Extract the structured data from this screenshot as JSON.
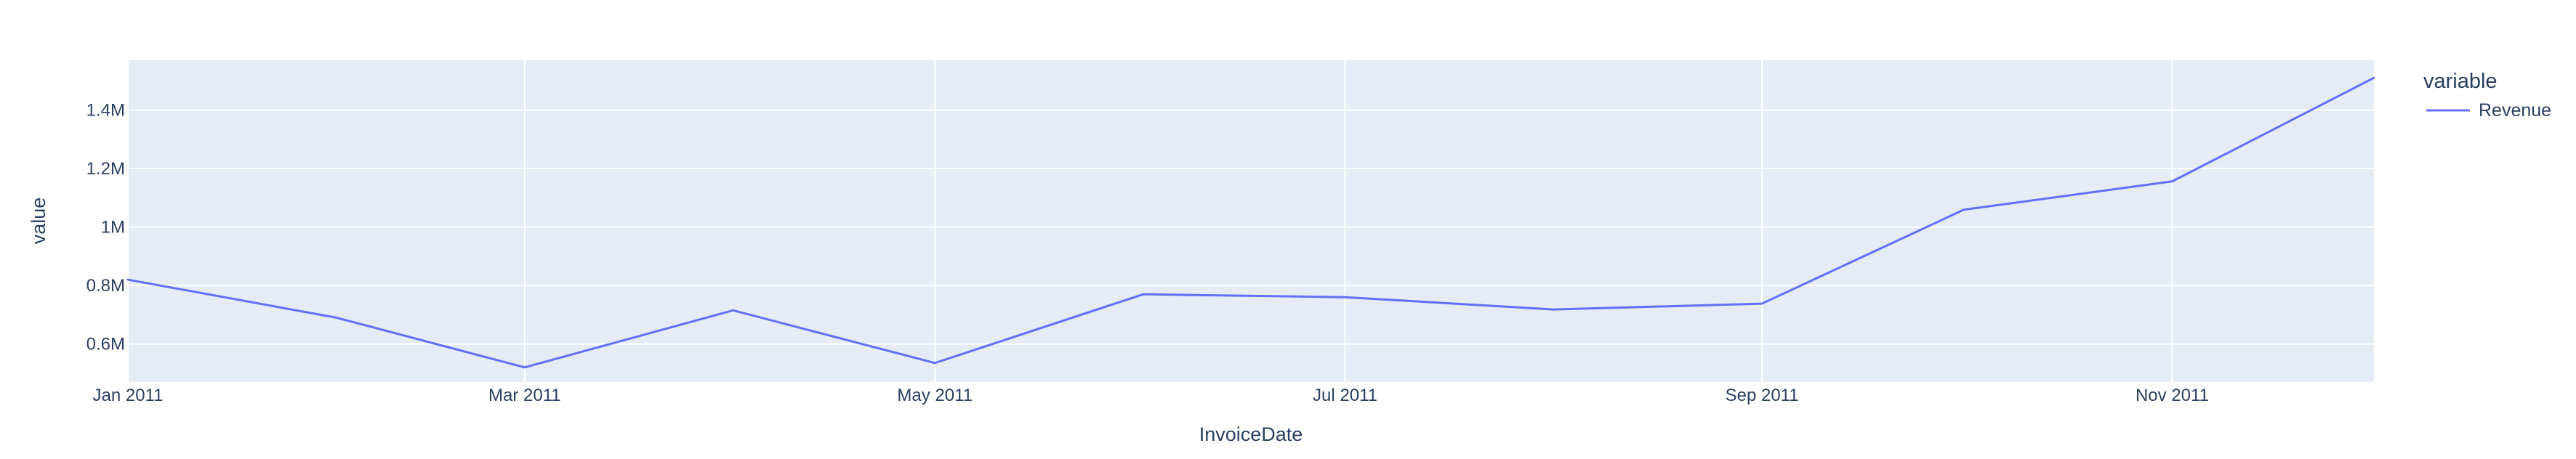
{
  "chart_data": {
    "type": "line",
    "xlabel": "InvoiceDate",
    "ylabel": "value",
    "x_tick_labels": [
      "Jan 2011",
      "Mar 2011",
      "May 2011",
      "Jul 2011",
      "Sep 2011",
      "Nov 2011"
    ],
    "x_tick_dates": [
      "2011-01-01",
      "2011-03-01",
      "2011-05-01",
      "2011-07-01",
      "2011-09-01",
      "2011-11-01"
    ],
    "y_tick_labels": [
      "0.6M",
      "0.8M",
      "1M",
      "1.2M",
      "1.4M"
    ],
    "y_tick_values": [
      600000,
      800000,
      1000000,
      1200000,
      1400000
    ],
    "xlim": [
      "2011-01-01",
      "2011-12-01"
    ],
    "ylim": [
      470000,
      1570000
    ],
    "grid": true,
    "legend": {
      "title": "variable",
      "position": "top-right"
    },
    "x": [
      "2011-01-01",
      "2011-02-01",
      "2011-03-01",
      "2011-04-01",
      "2011-05-01",
      "2011-06-01",
      "2011-07-01",
      "2011-08-01",
      "2011-09-01",
      "2011-10-01",
      "2011-11-01",
      "2011-12-01"
    ],
    "series": [
      {
        "name": "Revenue",
        "color": "#636efa",
        "values": [
          820000,
          690000,
          520000,
          715000,
          535000,
          770000,
          760000,
          718000,
          738000,
          1059000,
          1156000,
          1510000
        ]
      }
    ]
  },
  "colors": {
    "plot_background": "#e5ecf6",
    "grid": "#ffffff",
    "text": "#2a3f5f"
  }
}
